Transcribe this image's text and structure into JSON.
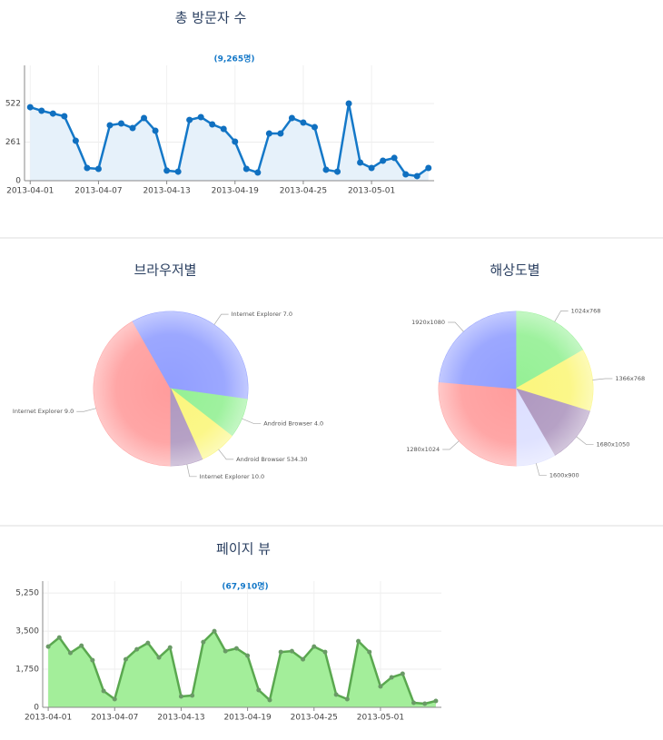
{
  "chart_data": [
    {
      "type": "line",
      "title": "총 방문자 수",
      "subtitle": "(9,265명)",
      "categories": [
        "2013-04-01",
        null,
        null,
        null,
        null,
        null,
        "2013-04-07",
        null,
        null,
        null,
        null,
        null,
        "2013-04-13",
        null,
        null,
        null,
        null,
        null,
        "2013-04-19",
        null,
        null,
        null,
        null,
        null,
        "2013-04-25",
        null,
        null,
        null,
        null,
        null,
        "2013-05-01",
        null,
        null,
        null,
        null,
        null
      ],
      "values": [
        497,
        473,
        454,
        436,
        270,
        86,
        80,
        375,
        387,
        356,
        424,
        338,
        68,
        61,
        411,
        430,
        381,
        350,
        264,
        80,
        55,
        319,
        319,
        424,
        393,
        362,
        74,
        61,
        522,
        123,
        86,
        135,
        154,
        43,
        31,
        86
      ],
      "color": "#1478c8",
      "fill_color": "#e6f1fa",
      "ylim": [
        0,
        780
      ],
      "yticks": [
        0,
        261,
        522
      ],
      "grid": true
    },
    {
      "type": "pie",
      "title": "브라우저별",
      "categories": [
        "Internet Explorer 9.0",
        "Internet Explorer 7.0",
        "Android Browser 4.0",
        "Android Browser 534.30",
        "Internet Explorer 10.0"
      ],
      "values": [
        41.8,
        35.4,
        8.3,
        7.8,
        6.7
      ],
      "colors": [
        "#ff9c9c",
        "#919eff",
        "#94f094",
        "#fbf67c",
        "#ae97bf"
      ]
    },
    {
      "type": "pie",
      "title": "해상도별",
      "categories": [
        "1024x768",
        "1366x768",
        "1680x1050",
        "1600x900",
        "1280x1024",
        "1920x1080"
      ],
      "values": [
        16.7,
        13,
        11.9,
        8.3,
        26.4,
        23.6
      ],
      "colors": [
        "#94f094",
        "#fbf67c",
        "#ae97bf",
        "#dcdfff",
        "#ff9c9c",
        "#919eff"
      ]
    },
    {
      "type": "line",
      "title": "페이지 뷰",
      "subtitle": "(67,910명)",
      "categories": [
        "2013-04-01",
        null,
        null,
        null,
        null,
        null,
        "2013-04-07",
        null,
        null,
        null,
        null,
        null,
        "2013-04-13",
        null,
        null,
        null,
        null,
        null,
        "2013-04-19",
        null,
        null,
        null,
        null,
        null,
        "2013-04-25",
        null,
        null,
        null,
        null,
        null,
        "2013-05-01",
        null,
        null,
        null,
        null,
        null
      ],
      "values": [
        2792,
        3208,
        2500,
        2833,
        2167,
        750,
        375,
        2208,
        2667,
        2958,
        2292,
        2750,
        500,
        542,
        3000,
        3500,
        2583,
        2708,
        2375,
        792,
        333,
        2542,
        2583,
        2208,
        2792,
        2542,
        583,
        375,
        3042,
        2542,
        958,
        1375,
        1542,
        208,
        167,
        292
      ],
      "color": "#5aa84f",
      "fill_color": "#a3ee9a",
      "ylim": [
        0,
        5800
      ],
      "yticks": [
        0,
        {
          "value": 1750,
          "label": "1,750"
        },
        {
          "value": 3500,
          "label": "3,500"
        },
        {
          "value": 5250,
          "label": "5,250"
        }
      ],
      "grid": true
    }
  ]
}
